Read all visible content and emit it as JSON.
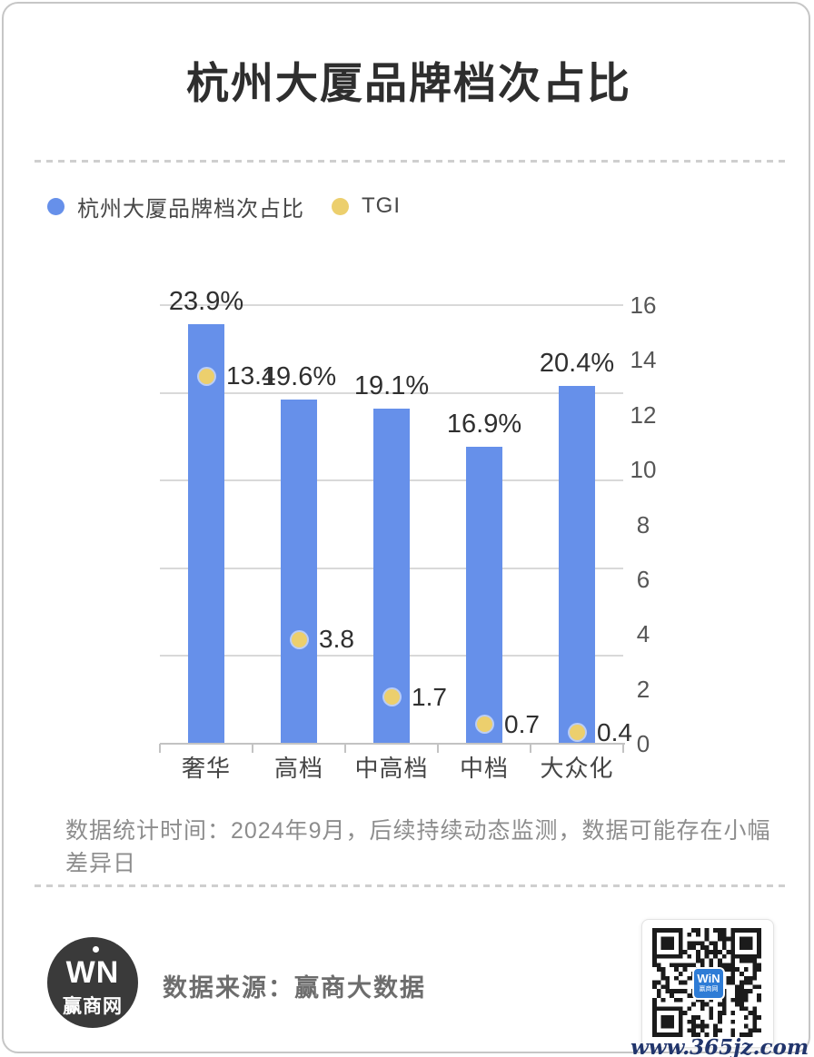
{
  "header": {
    "title": "杭州大厦品牌档次占比"
  },
  "legend": {
    "series1_label": "杭州大厦品牌档次占比",
    "series1_color": "#6690ea",
    "series2_label": "TGI",
    "series2_color": "#eccf6d"
  },
  "chart_data": {
    "type": "bar",
    "categories": [
      "奢华",
      "高档",
      "中高档",
      "中档",
      "大众化"
    ],
    "series": [
      {
        "name": "杭州大厦品牌档次占比",
        "type": "bar",
        "axis": "left",
        "unit": "%",
        "values": [
          23.9,
          19.6,
          19.1,
          16.9,
          20.4
        ],
        "labels": [
          "23.9%",
          "19.6%",
          "19.1%",
          "16.9%",
          "20.4%"
        ],
        "color": "#6690ea",
        "ylim": [
          0,
          25
        ]
      },
      {
        "name": "TGI",
        "type": "scatter",
        "axis": "right",
        "values": [
          13.4,
          3.8,
          1.7,
          0.7,
          0.4
        ],
        "labels": [
          "13.4",
          "3.8",
          "1.7",
          "0.7",
          "0.4"
        ],
        "color": "#eccf6d",
        "ylim": [
          0,
          16
        ]
      }
    ],
    "right_axis_ticks": [
      0,
      2,
      4,
      6,
      8,
      10,
      12,
      14,
      16
    ],
    "left_axis": {
      "min": 0,
      "max": 25,
      "labels_hidden": true,
      "gridline_step_percent": 5
    },
    "grid": true,
    "legend_position": "top-left",
    "title": "杭州大厦品牌档次占比"
  },
  "note": {
    "text": "数据统计时间：2024年9月，后续持续动态监测，数据可能存在小幅差异日"
  },
  "footer": {
    "source_text": "数据来源：赢商大数据",
    "logo_win": "WN",
    "logo_brand": "赢商网",
    "qr_logo_text": "WiN",
    "qr_logo_sub": "赢商网",
    "watermark": "www.365jz.com"
  }
}
